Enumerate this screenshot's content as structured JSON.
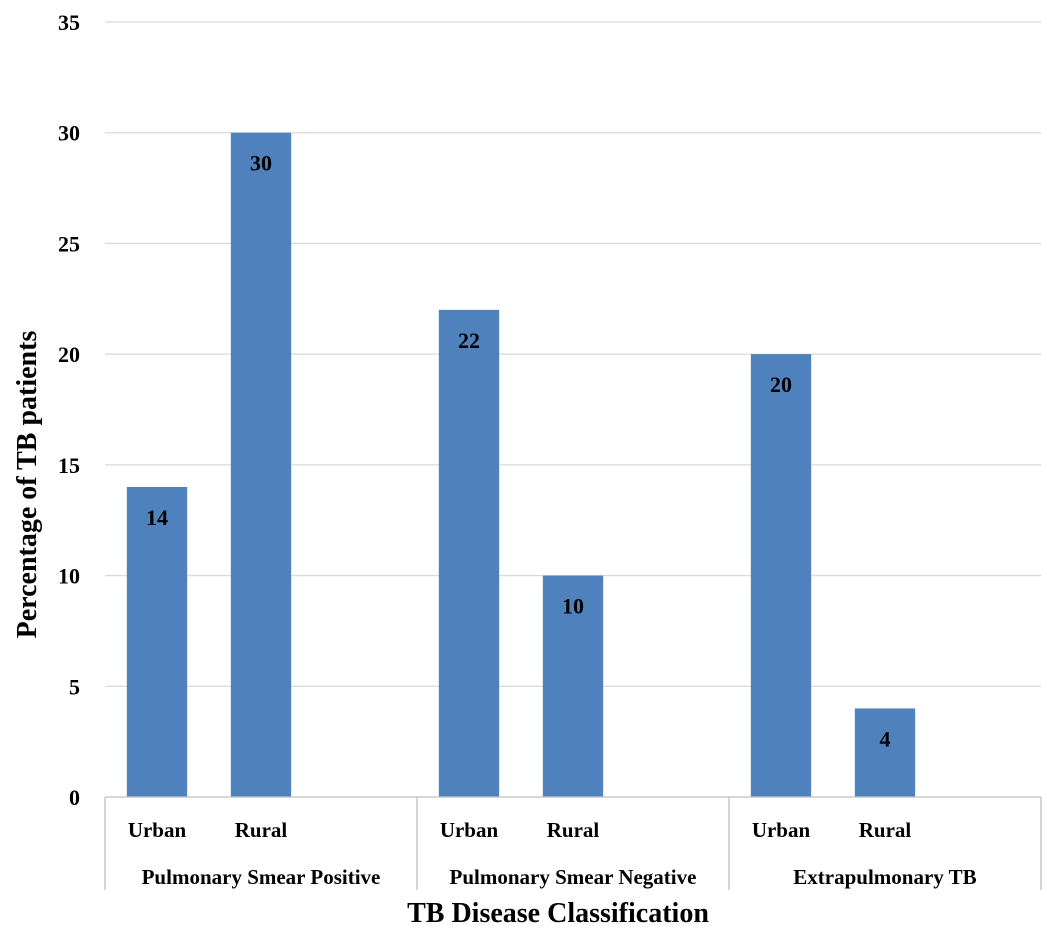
{
  "chart_data": {
    "type": "bar",
    "title": "",
    "xlabel": "TB  Disease  Classification",
    "ylabel": "Percentage  of  TB  patients",
    "ylim": [
      0,
      35
    ],
    "yticks": [
      0,
      5,
      10,
      15,
      20,
      25,
      30,
      35
    ],
    "grid": true,
    "legend": "none",
    "colors": {
      "bar": "#4f81bd",
      "grid": "#d9d9d9",
      "axis": "#bfbfbf"
    },
    "groups": [
      {
        "label": "Pulmonary Smear Positive",
        "categories": [
          "Urban",
          "Rural"
        ],
        "values": [
          14,
          30
        ]
      },
      {
        "label": "Pulmonary Smear Negative",
        "categories": [
          "Urban",
          "Rural"
        ],
        "values": [
          22,
          10
        ]
      },
      {
        "label": "Extrapulmonary TB",
        "categories": [
          "Urban",
          "Rural"
        ],
        "values": [
          20,
          4
        ]
      }
    ]
  }
}
